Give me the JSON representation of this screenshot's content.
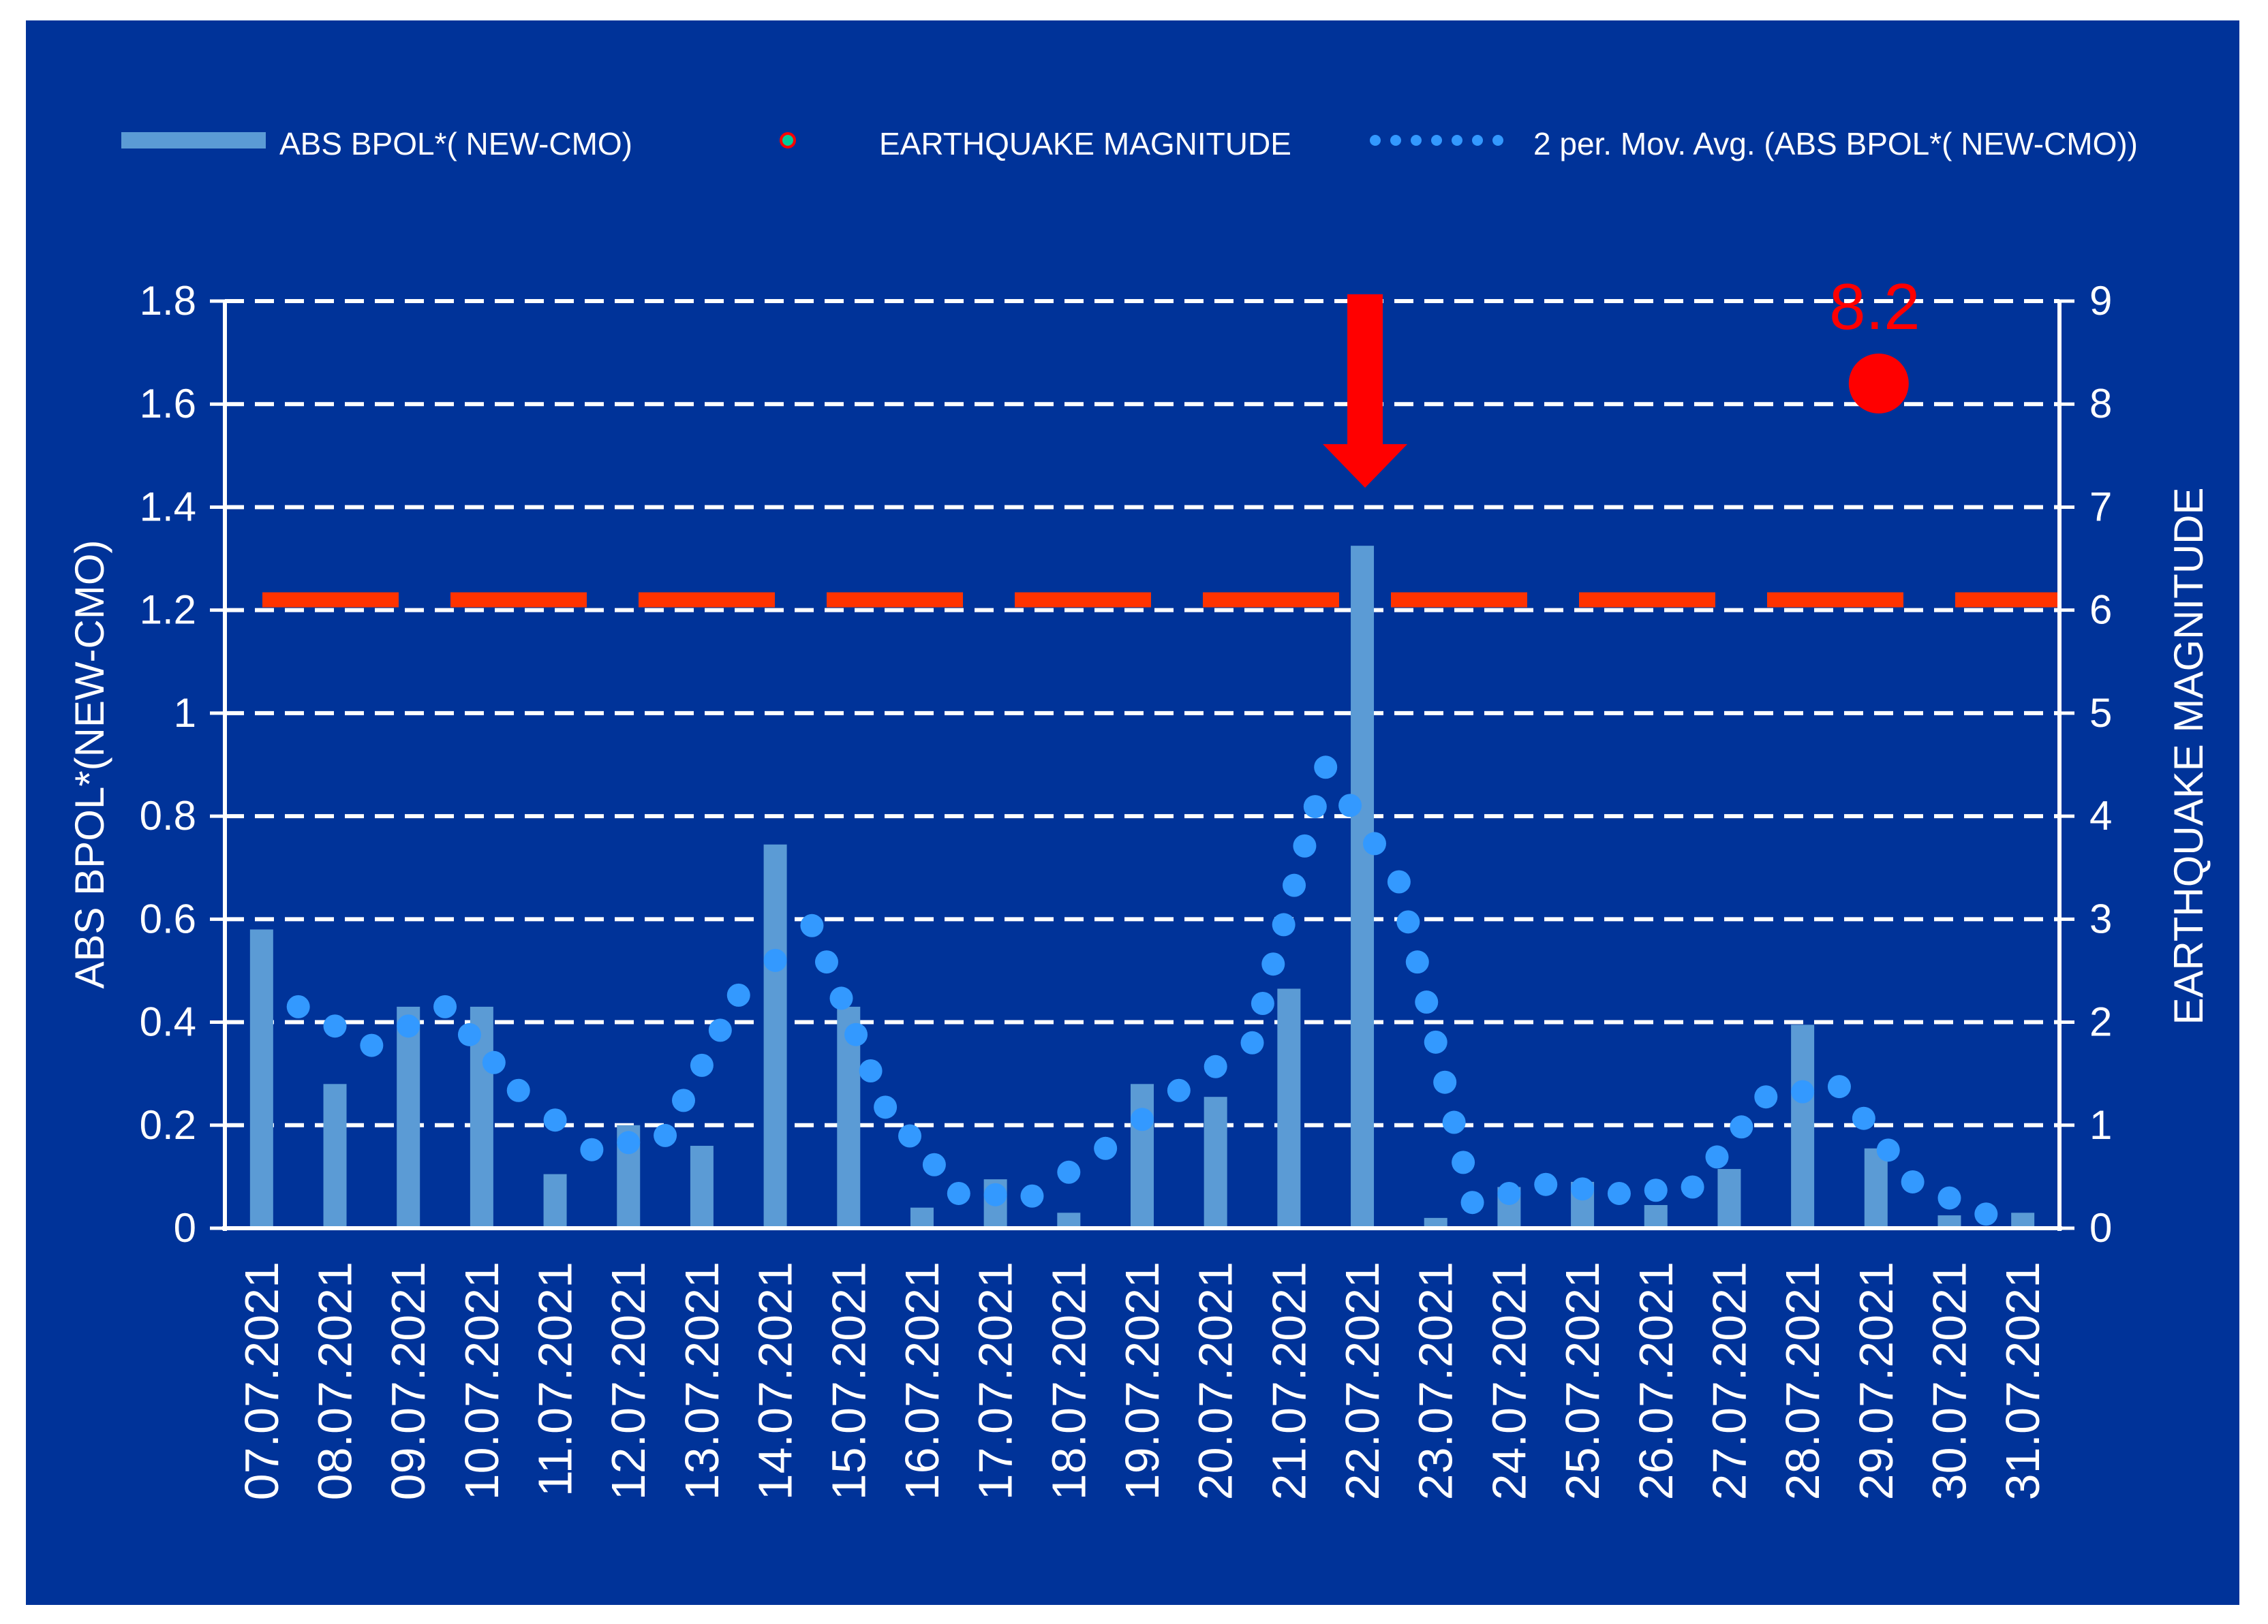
{
  "chart_data": {
    "type": "bar",
    "legend": {
      "position": "top",
      "entries": [
        "ABS BPOL*( NEW-CMO)",
        "EARTHQUAKE MAGNITUDE",
        "2 per. Mov. Avg. (ABS BPOL*( NEW-CMO))"
      ]
    },
    "ylabel": "ABS BPOL*(NEW-CMO)",
    "y2label": "EARTHQUAKE MAGNITUDE",
    "ylim": [
      0,
      1.8
    ],
    "y2lim": [
      0,
      9
    ],
    "yticks": [
      "0",
      "0.2",
      "0.4",
      "0.6",
      "0.8",
      "1",
      "1.2",
      "1.4",
      "1.6",
      "1.8"
    ],
    "y2ticks": [
      "0",
      "1",
      "2",
      "3",
      "4",
      "5",
      "6",
      "7",
      "8",
      "9"
    ],
    "grid": true,
    "categories": [
      "07.07.2021",
      "08.07.2021",
      "09.07.2021",
      "10.07.2021",
      "11.07.2021",
      "12.07.2021",
      "13.07.2021",
      "14.07.2021",
      "15.07.2021",
      "16.07.2021",
      "17.07.2021",
      "18.07.2021",
      "19.07.2021",
      "20.07.2021",
      "21.07.2021",
      "22.07.2021",
      "23.07.2021",
      "24.07.2021",
      "25.07.2021",
      "26.07.2021",
      "27.07.2021",
      "28.07.2021",
      "29.07.2021",
      "30.07.2021",
      "31.07.2021"
    ],
    "series": [
      {
        "name": "ABS BPOL*( NEW-CMO)",
        "type": "bar",
        "axis": "left",
        "values": [
          0.58,
          0.28,
          0.43,
          0.43,
          0.105,
          0.2,
          0.16,
          0.745,
          0.43,
          0.04,
          0.095,
          0.03,
          0.28,
          0.255,
          0.465,
          1.325,
          0.02,
          0.08,
          0.09,
          0.045,
          0.115,
          0.395,
          0.155,
          0.025,
          0.03
        ]
      },
      {
        "name": "EARTHQUAKE MAGNITUDE",
        "type": "scatter",
        "axis": "right",
        "points": [
          {
            "x": "29.07.2021",
            "y": 8.2
          }
        ]
      },
      {
        "name": "2 per. Mov. Avg. (ABS BPOL*( NEW-CMO))",
        "type": "line",
        "style": "dotted",
        "axis": "left",
        "values": [
          null,
          0.43,
          0.355,
          0.43,
          0.2675,
          0.1525,
          0.18,
          0.4525,
          0.5875,
          0.235,
          0.0675,
          0.0625,
          0.155,
          0.2675,
          0.36,
          0.895,
          0.6725,
          0.05,
          0.085,
          0.0675,
          0.08,
          0.255,
          0.275,
          0.09,
          0.0275
        ]
      }
    ],
    "threshold": {
      "value": 1.22,
      "axis": "left",
      "color": "#ff3300",
      "style": "dashed"
    },
    "annotations": [
      {
        "text": "8.2",
        "x": "29.07.2021",
        "color": "#ff0000"
      },
      {
        "shape": "down-arrow",
        "x": "22.07.2021",
        "color": "#ff0000"
      }
    ],
    "colors": {
      "background": "#003399",
      "bars": "#5b9bd5",
      "moving_avg": "#3399ff",
      "earthquake": "#ff0000",
      "threshold": "#ff3300",
      "grid": "#ffffff",
      "text": "#ffffff"
    }
  }
}
